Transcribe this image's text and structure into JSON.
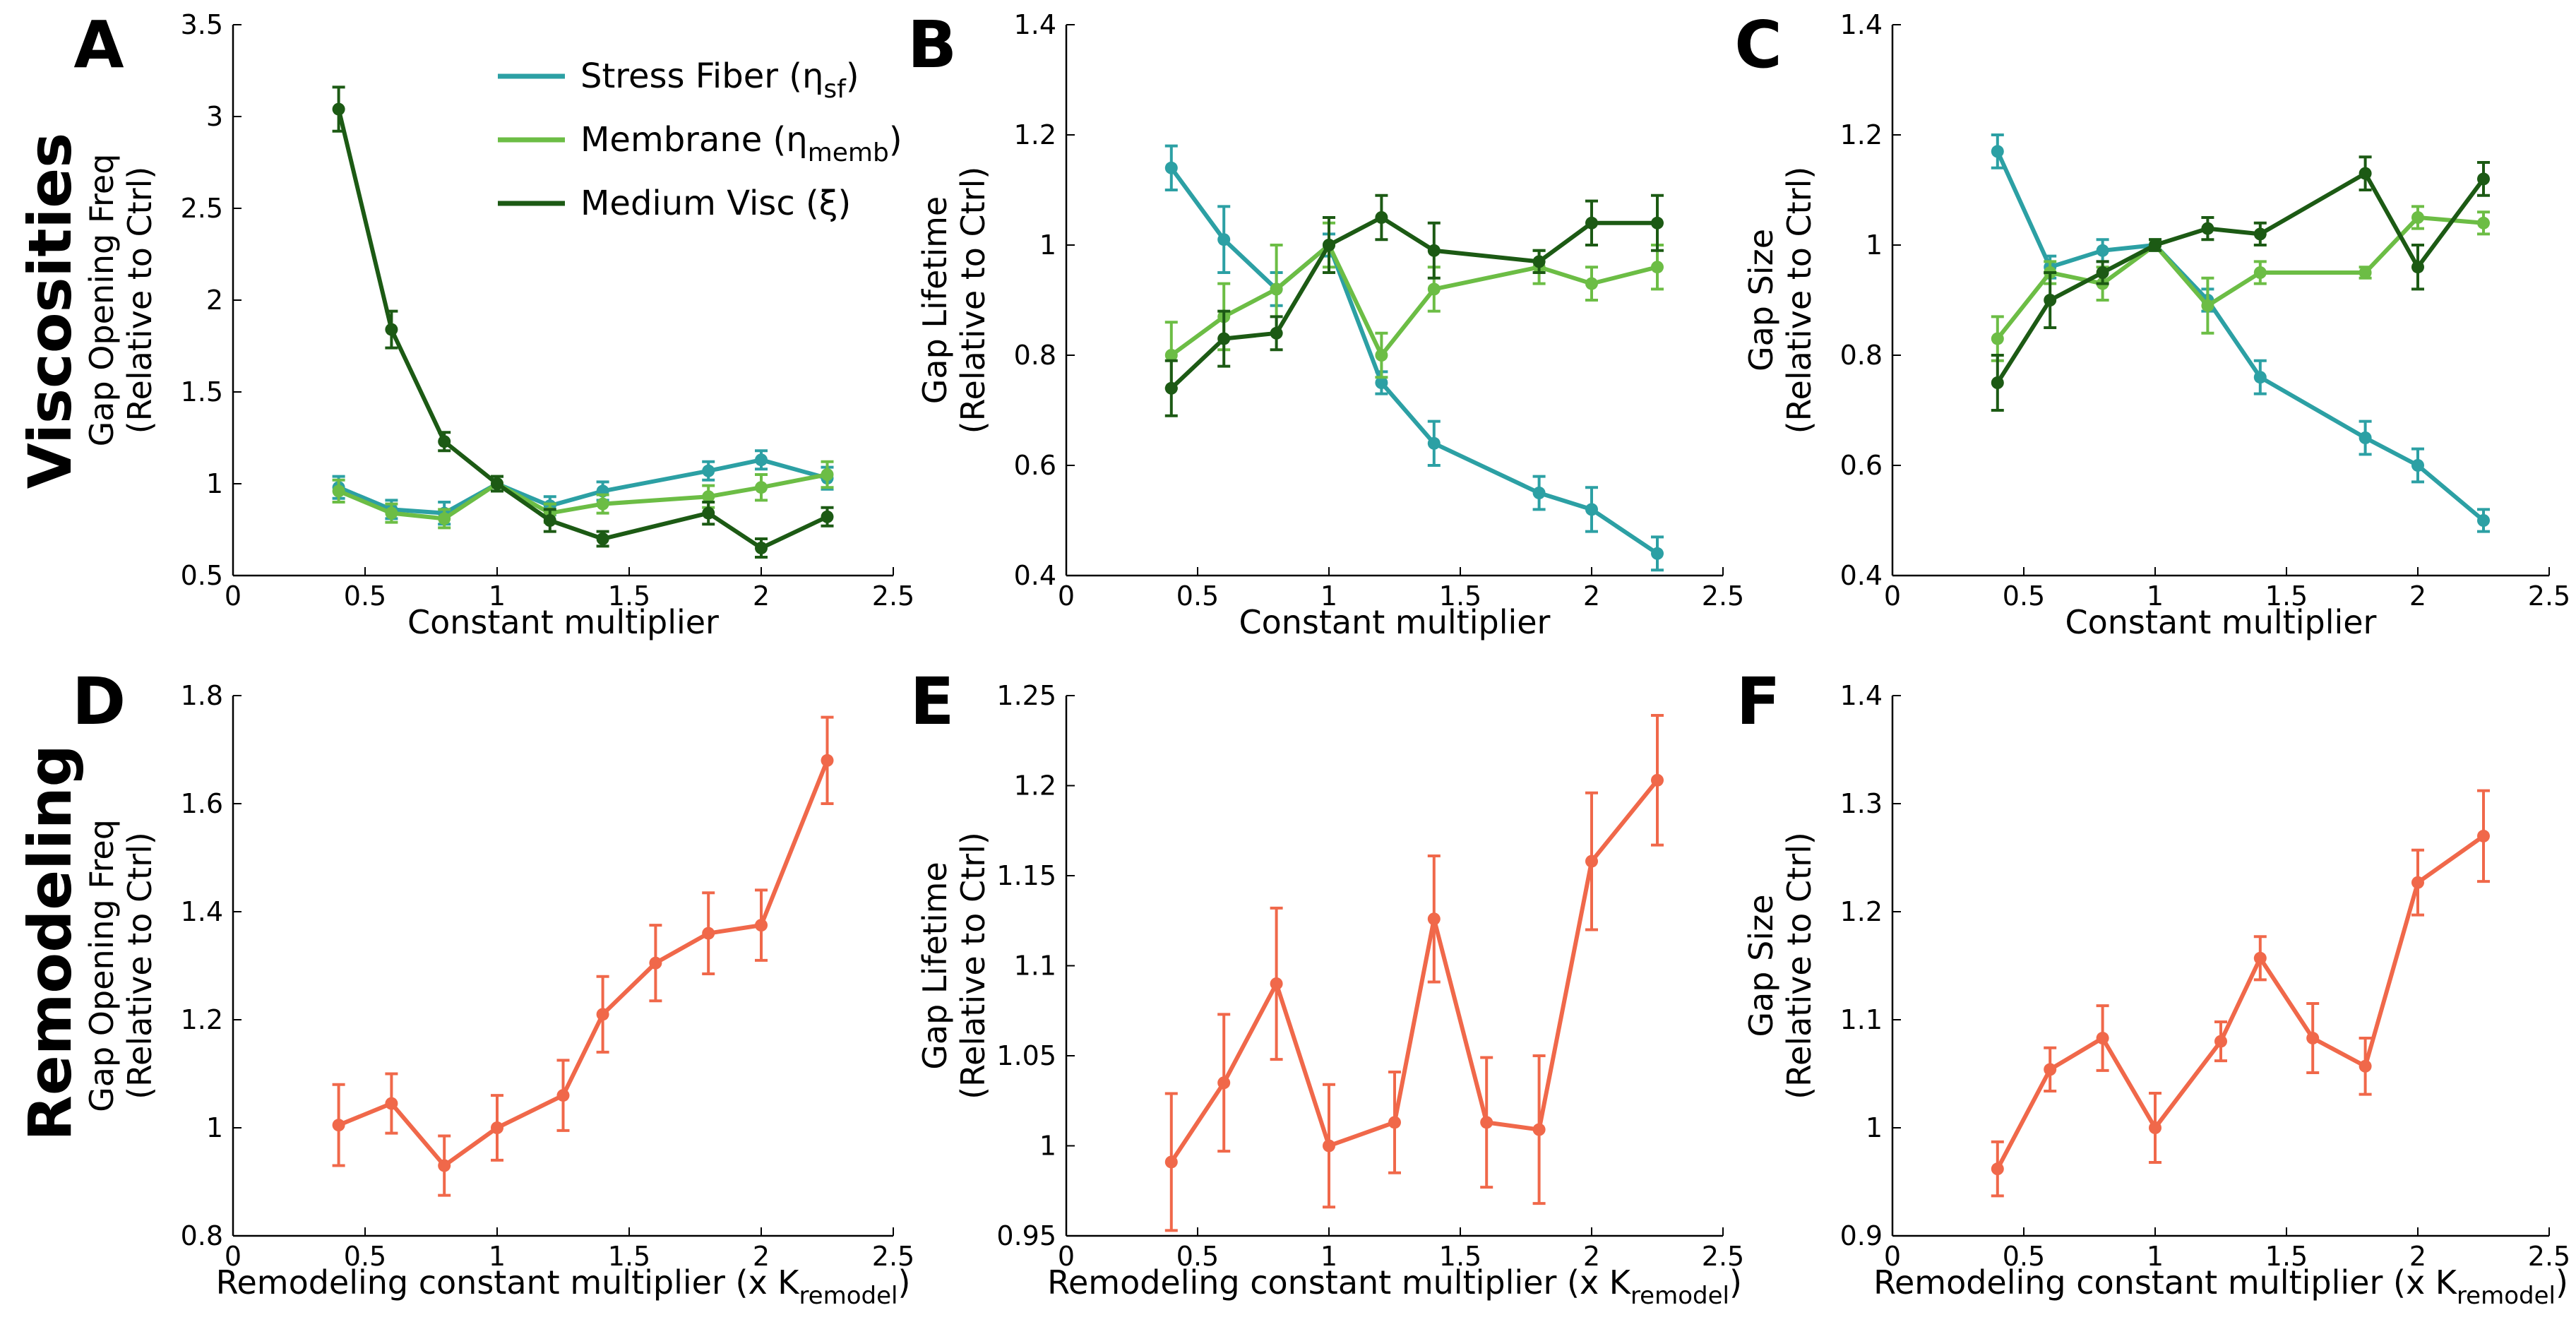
{
  "row_labels": {
    "top": "Viscosities",
    "bottom": "Remodeling"
  },
  "legend": {
    "entries": [
      {
        "label": "Stress Fiber (η",
        "sub": "sf",
        "tail": ")",
        "color": "#2ca0a4"
      },
      {
        "label": "Membrane (η",
        "sub": "memb",
        "tail": ")",
        "color": "#6cbd45"
      },
      {
        "label": "Medium Visc (ξ)",
        "sub": "",
        "tail": "",
        "color": "#1c5a14"
      }
    ]
  },
  "colors": {
    "stress_fiber": "#2ca0a4",
    "membrane": "#6cbd45",
    "medium": "#1c5a14",
    "remodel": "#f0684a"
  },
  "chart_data": [
    {
      "panel": "A",
      "type": "line",
      "xlabel": "Constant multiplier",
      "xlabel_sub": "",
      "xlabel_tail": "",
      "ylabel": [
        "Gap Opening Freq",
        "(Relative to Ctrl)"
      ],
      "xlim": [
        0,
        2.5
      ],
      "ylim": [
        0.5,
        3.5
      ],
      "xticks": [
        "0",
        "0.5",
        "1",
        "1.5",
        "2",
        "2.5"
      ],
      "yticks": [
        "0.5",
        "1",
        "1.5",
        "2",
        "2.5",
        "3",
        "3.5"
      ],
      "x": [
        0.4,
        0.6,
        0.8,
        1.0,
        1.2,
        1.4,
        1.8,
        2.0,
        2.25
      ],
      "series": [
        {
          "name": "Stress Fiber",
          "color": "#2ca0a4",
          "values": [
            0.98,
            0.86,
            0.84,
            1.0,
            0.88,
            0.96,
            1.07,
            1.13,
            1.03
          ],
          "errors": [
            0.06,
            0.05,
            0.06,
            0.04,
            0.05,
            0.05,
            0.05,
            0.05,
            0.06
          ]
        },
        {
          "name": "Membrane",
          "color": "#6cbd45",
          "values": [
            0.96,
            0.84,
            0.81,
            1.0,
            0.84,
            0.89,
            0.93,
            0.98,
            1.05
          ],
          "errors": [
            0.06,
            0.05,
            0.05,
            0.04,
            0.05,
            0.05,
            0.06,
            0.07,
            0.07
          ]
        },
        {
          "name": "Medium Visc",
          "color": "#1c5a14",
          "values": [
            3.04,
            1.84,
            1.23,
            1.0,
            0.8,
            0.7,
            0.84,
            0.65,
            0.82
          ],
          "errors": [
            0.12,
            0.1,
            0.05,
            0.04,
            0.06,
            0.04,
            0.06,
            0.05,
            0.05
          ]
        }
      ]
    },
    {
      "panel": "B",
      "type": "line",
      "xlabel": "Constant multiplier",
      "xlabel_sub": "",
      "xlabel_tail": "",
      "ylabel": [
        "Gap Lifetime",
        "(Relative to Ctrl)"
      ],
      "xlim": [
        0,
        2.5
      ],
      "ylim": [
        0.4,
        1.4
      ],
      "xticks": [
        "0",
        "0.5",
        "1",
        "1.5",
        "2",
        "2.5"
      ],
      "yticks": [
        "0.4",
        "0.6",
        "0.8",
        "1",
        "1.2",
        "1.4"
      ],
      "x": [
        0.4,
        0.6,
        0.8,
        1.0,
        1.2,
        1.4,
        1.8,
        2.0,
        2.25
      ],
      "series": [
        {
          "name": "Stress Fiber",
          "color": "#2ca0a4",
          "values": [
            1.14,
            1.01,
            0.92,
            1.0,
            0.75,
            0.64,
            0.55,
            0.52,
            0.44
          ],
          "errors": [
            0.04,
            0.06,
            0.03,
            0.02,
            0.02,
            0.04,
            0.03,
            0.04,
            0.03
          ]
        },
        {
          "name": "Membrane",
          "color": "#6cbd45",
          "values": [
            0.8,
            0.87,
            0.92,
            1.0,
            0.8,
            0.92,
            0.96,
            0.93,
            0.96
          ],
          "errors": [
            0.06,
            0.06,
            0.08,
            0.04,
            0.04,
            0.04,
            0.03,
            0.03,
            0.04
          ]
        },
        {
          "name": "Medium Visc",
          "color": "#1c5a14",
          "values": [
            0.74,
            0.83,
            0.84,
            1.0,
            1.05,
            0.99,
            0.97,
            1.04,
            1.04
          ],
          "errors": [
            0.05,
            0.05,
            0.03,
            0.05,
            0.04,
            0.05,
            0.02,
            0.04,
            0.05
          ]
        }
      ]
    },
    {
      "panel": "C",
      "type": "line",
      "xlabel": "Constant multiplier",
      "xlabel_sub": "",
      "xlabel_tail": "",
      "ylabel": [
        "Gap Size",
        "(Relative to Ctrl)"
      ],
      "xlim": [
        0,
        2.5
      ],
      "ylim": [
        0.4,
        1.4
      ],
      "xticks": [
        "0",
        "0.5",
        "1",
        "1.5",
        "2",
        "2.5"
      ],
      "yticks": [
        "0.4",
        "0.6",
        "0.8",
        "1",
        "1.2",
        "1.4"
      ],
      "x": [
        0.4,
        0.6,
        0.8,
        1.0,
        1.2,
        1.4,
        1.8,
        2.0,
        2.25
      ],
      "series": [
        {
          "name": "Stress Fiber",
          "color": "#2ca0a4",
          "values": [
            1.17,
            0.96,
            0.99,
            1.0,
            0.9,
            0.76,
            0.65,
            0.6,
            0.5
          ],
          "errors": [
            0.03,
            0.02,
            0.02,
            0.01,
            0.02,
            0.03,
            0.03,
            0.03,
            0.02
          ]
        },
        {
          "name": "Membrane",
          "color": "#6cbd45",
          "values": [
            0.83,
            0.95,
            0.93,
            1.0,
            0.89,
            0.95,
            0.95,
            1.05,
            1.04
          ],
          "errors": [
            0.04,
            0.02,
            0.03,
            0.01,
            0.05,
            0.02,
            0.01,
            0.02,
            0.02
          ]
        },
        {
          "name": "Medium Visc",
          "color": "#1c5a14",
          "values": [
            0.75,
            0.9,
            0.95,
            1.0,
            1.03,
            1.02,
            1.13,
            0.96,
            1.12
          ],
          "errors": [
            0.05,
            0.05,
            0.02,
            0.01,
            0.02,
            0.02,
            0.03,
            0.04,
            0.03
          ]
        }
      ]
    },
    {
      "panel": "D",
      "type": "line",
      "xlabel": "Remodeling constant multiplier (x K",
      "xlabel_sub": "remodel",
      "xlabel_tail": ")",
      "ylabel": [
        "Gap Opening Freq",
        "(Relative to Ctrl)"
      ],
      "xlim": [
        0,
        2.5
      ],
      "ylim": [
        0.8,
        1.8
      ],
      "xticks": [
        "0",
        "0.5",
        "1",
        "1.5",
        "2",
        "2.5"
      ],
      "yticks": [
        "0.8",
        "1",
        "1.2",
        "1.4",
        "1.6",
        "1.8"
      ],
      "x": [
        0.4,
        0.6,
        0.8,
        1.0,
        1.25,
        1.4,
        1.6,
        1.8,
        2.0,
        2.25
      ],
      "series": [
        {
          "name": "Remodeling",
          "color": "#f0684a",
          "values": [
            1.005,
            1.045,
            0.93,
            1.0,
            1.06,
            1.21,
            1.305,
            1.36,
            1.375,
            1.68
          ],
          "errors": [
            0.075,
            0.055,
            0.055,
            0.06,
            0.065,
            0.07,
            0.07,
            0.075,
            0.065,
            0.08
          ]
        }
      ]
    },
    {
      "panel": "E",
      "type": "line",
      "xlabel": "Remodeling constant multiplier (x K",
      "xlabel_sub": "remodel",
      "xlabel_tail": ")",
      "ylabel": [
        "Gap Lifetime",
        "(Relative to Ctrl)"
      ],
      "xlim": [
        0,
        2.5
      ],
      "ylim": [
        0.95,
        1.25
      ],
      "xticks": [
        "0",
        "0.5",
        "1",
        "1.5",
        "2",
        "2.5"
      ],
      "yticks": [
        "0.95",
        "1",
        "1.05",
        "1.1",
        "1.15",
        "1.2",
        "1.25"
      ],
      "x": [
        0.4,
        0.6,
        0.8,
        1.0,
        1.25,
        1.4,
        1.6,
        1.8,
        2.0,
        2.25
      ],
      "series": [
        {
          "name": "Remodeling",
          "color": "#f0684a",
          "values": [
            0.991,
            1.035,
            1.09,
            1.0,
            1.013,
            1.126,
            1.013,
            1.009,
            1.158,
            1.203
          ],
          "errors": [
            0.038,
            0.038,
            0.042,
            0.034,
            0.028,
            0.035,
            0.036,
            0.041,
            0.038,
            0.036
          ]
        }
      ]
    },
    {
      "panel": "F",
      "type": "line",
      "xlabel": "Remodeling constant multiplier (x K",
      "xlabel_sub": "remodel",
      "xlabel_tail": ")",
      "ylabel": [
        "Gap Size",
        "(Relative to Ctrl)"
      ],
      "xlim": [
        0,
        2.5
      ],
      "ylim": [
        0.9,
        1.4
      ],
      "xticks": [
        "0",
        "0.5",
        "1",
        "1.5",
        "2",
        "2.5"
      ],
      "yticks": [
        "0.9",
        "1",
        "1.1",
        "1.2",
        "1.3",
        "1.4"
      ],
      "x": [
        0.4,
        0.6,
        0.8,
        1.0,
        1.25,
        1.4,
        1.6,
        1.8,
        2.0,
        2.25
      ],
      "series": [
        {
          "name": "Remodeling",
          "color": "#f0684a",
          "values": [
            0.962,
            1.054,
            1.083,
            1.0,
            1.08,
            1.157,
            1.083,
            1.057,
            1.227,
            1.27
          ],
          "errors": [
            0.025,
            0.02,
            0.03,
            0.032,
            0.018,
            0.02,
            0.032,
            0.026,
            0.03,
            0.042
          ]
        }
      ]
    }
  ]
}
